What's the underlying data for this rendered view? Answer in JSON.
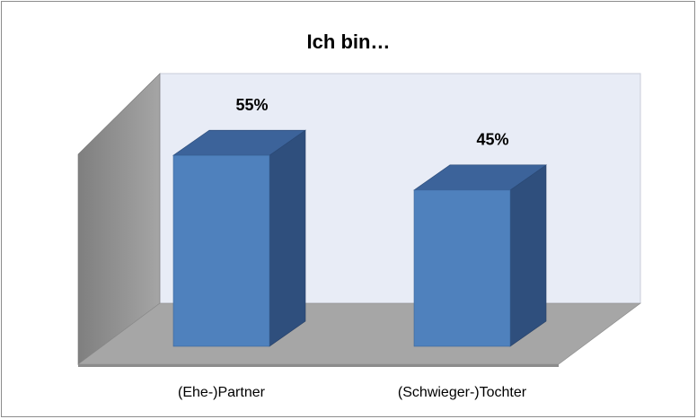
{
  "chart_data": {
    "type": "bar3d",
    "title": "Ich bin…",
    "categories": [
      "(Ehe-)Partner",
      "(Schwieger-)Tochter"
    ],
    "values": [
      55,
      45
    ],
    "value_labels": [
      "55%",
      "45%"
    ],
    "color": "#4f81bd"
  }
}
